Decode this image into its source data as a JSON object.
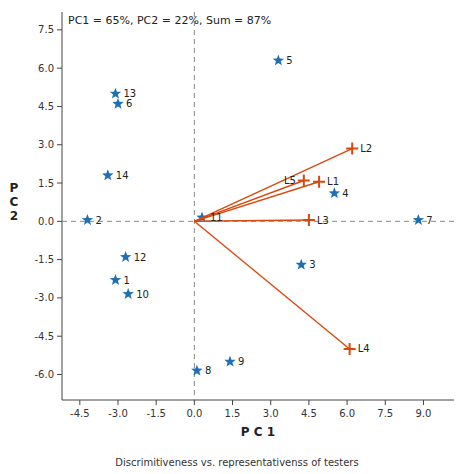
{
  "chart_data": {
    "type": "scatter",
    "title": "PC1 = 65%, PC2 = 22%, Sum = 87%",
    "subtitle": "Discrimitiveness vs. representativenss of testers",
    "x_label": "P C 1",
    "y_label": "P\nC\n2",
    "xlim": [
      -5.2,
      10.2
    ],
    "ylim": [
      -7.0,
      8.2
    ],
    "xticks": [
      -4.5,
      {
        "value": -3.0,
        "label": "-3.0"
      },
      -1.5,
      {
        "value": 0.0,
        "label": "0.0"
      },
      1.5,
      {
        "value": 3.0,
        "label": "3.0"
      },
      4.5,
      {
        "value": 6.0,
        "label": "6.0"
      },
      7.5,
      {
        "value": 9.0,
        "label": "9.0"
      }
    ],
    "yticks": [
      {
        "value": -6.0,
        "label": "-6.0"
      },
      -4.5,
      {
        "value": -3.0,
        "label": "-3.0"
      },
      -1.5,
      {
        "value": 0.0,
        "label": "0.0"
      },
      1.5,
      {
        "value": 3.0,
        "label": "3.0"
      },
      4.5,
      {
        "value": 6.0,
        "label": "6.0"
      },
      7.5
    ],
    "series": [
      {
        "type": "scatter",
        "marker": "star",
        "point_labels": [
          "1",
          "2",
          "3",
          "4",
          "5",
          "6",
          "7",
          "8",
          "9",
          "10",
          "11",
          "12",
          "13",
          "14"
        ],
        "x": [
          -3.1,
          -4.2,
          4.2,
          5.5,
          3.3,
          -3.0,
          8.8,
          0.1,
          1.4,
          -2.6,
          0.3,
          -2.7,
          -3.1,
          -3.4
        ],
        "values": [
          -2.3,
          0.05,
          -1.7,
          1.1,
          6.3,
          4.6,
          0.05,
          -5.85,
          -5.5,
          -2.85,
          0.15,
          -1.4,
          5.0,
          1.8
        ]
      },
      {
        "type": "vector",
        "marker": "plus",
        "point_labels": [
          "L1",
          "L2",
          "L3",
          "L4",
          "L5"
        ],
        "x": [
          4.9,
          6.2,
          4.5,
          6.1,
          4.3
        ],
        "values": [
          1.55,
          2.85,
          0.05,
          -5.0,
          1.6
        ]
      }
    ]
  }
}
